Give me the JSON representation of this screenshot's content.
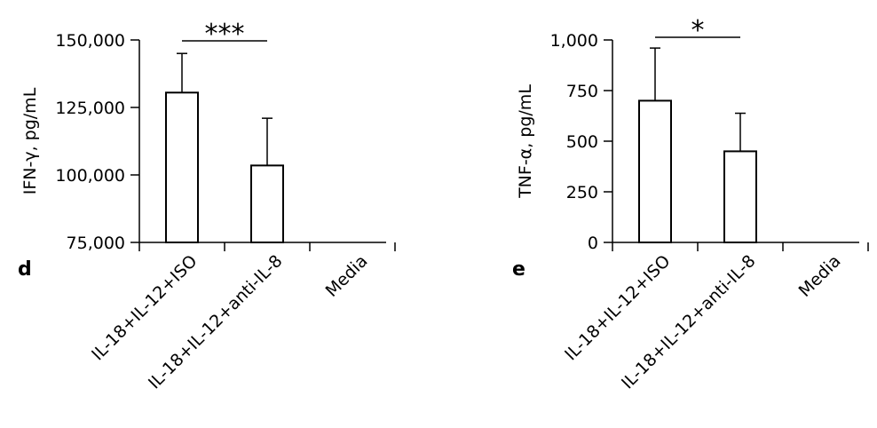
{
  "chart_data": [
    {
      "type": "bar",
      "panel": "d",
      "ylabel": "IFN-γ, pg/mL",
      "categories": [
        "IL-18+IL-12+ISO",
        "IL-18+IL-12+anti-IL-8",
        "Media"
      ],
      "values": [
        130500,
        103500,
        null
      ],
      "error_upper": [
        145000,
        121000,
        null
      ],
      "ylim": [
        75000,
        150000
      ],
      "yticks": [
        75000,
        100000,
        125000,
        150000
      ],
      "ytick_labels": [
        "75,000",
        "100,000",
        "125,000",
        "150,000"
      ],
      "significance": {
        "from": 0,
        "to": 1,
        "label": "***"
      }
    },
    {
      "type": "bar",
      "panel": "e",
      "ylabel": "TNF-α, pg/mL",
      "categories": [
        "IL-18+IL-12+ISO",
        "IL-18+IL-12+anti-IL-8",
        "Media"
      ],
      "values": [
        700,
        450,
        null
      ],
      "error_upper": [
        960,
        638,
        null
      ],
      "ylim": [
        0,
        1000
      ],
      "yticks": [
        0,
        250,
        500,
        750,
        1000
      ],
      "ytick_labels": [
        "0",
        "250",
        "500",
        "750",
        "1,000"
      ],
      "significance": {
        "from": 0,
        "to": 1,
        "label": "*"
      }
    }
  ]
}
